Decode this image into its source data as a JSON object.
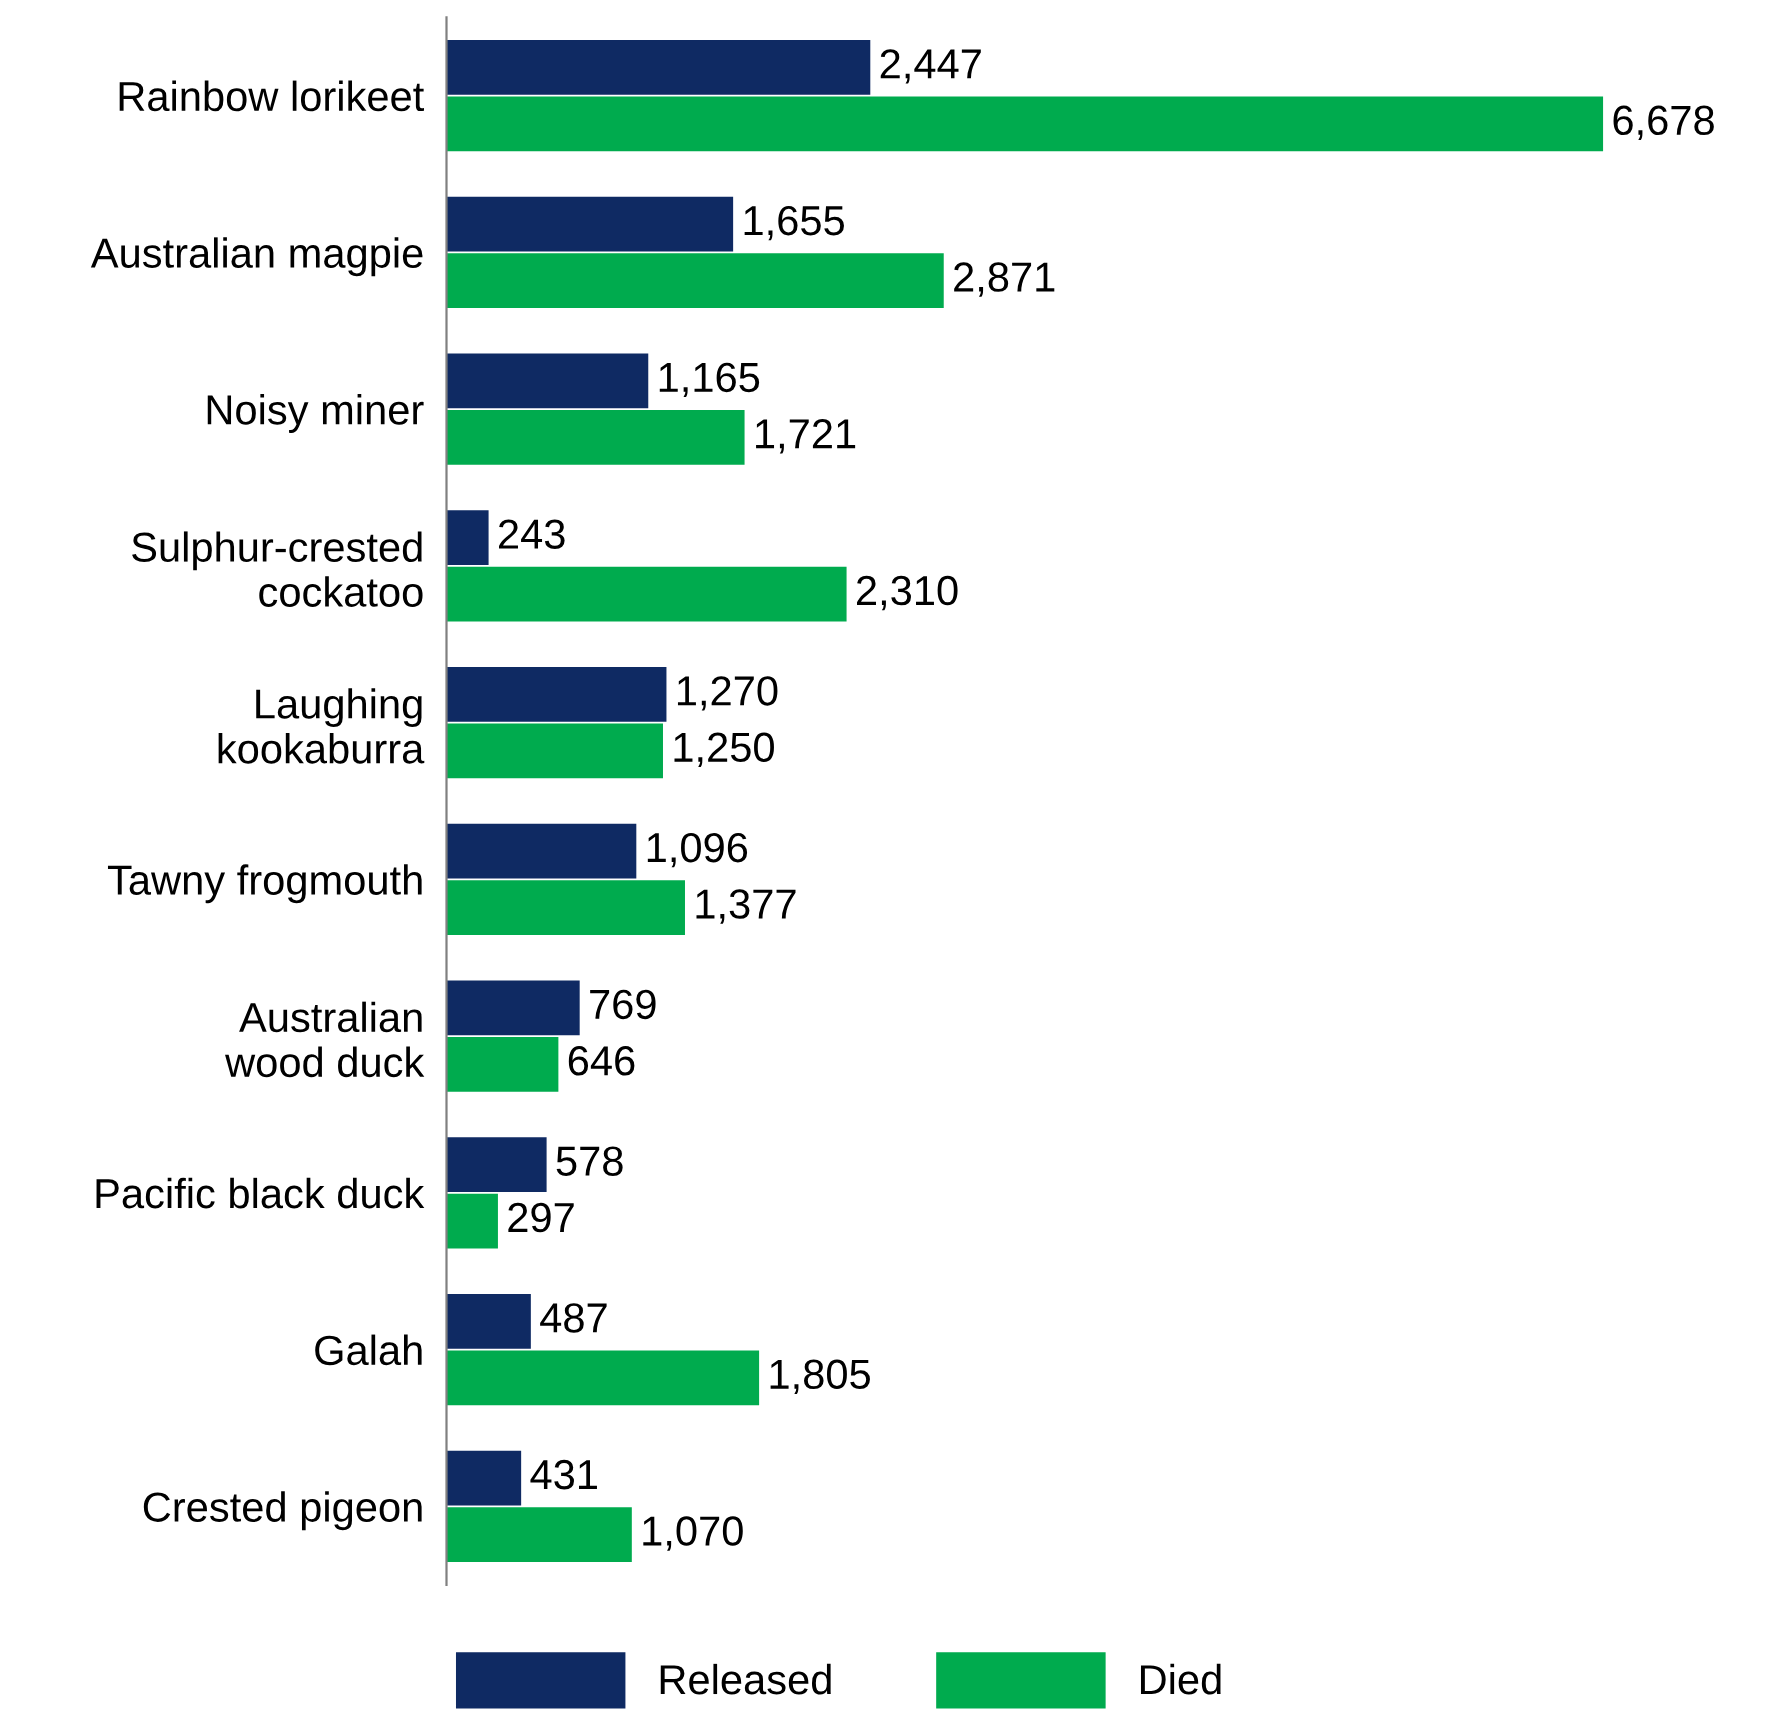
{
  "chart_data": {
    "type": "bar",
    "orientation": "horizontal",
    "categories": [
      "Rainbow lorikeet",
      "Australian magpie",
      "Noisy miner",
      "Sulphur-crested\ncockatoo",
      "Laughing\nkookaburra",
      "Tawny frogmouth",
      "Australian\nwood duck",
      "Pacific black duck",
      "Galah",
      "Crested pigeon"
    ],
    "series": [
      {
        "name": "Released",
        "color": "#0f2a63",
        "values": [
          2447,
          1655,
          1165,
          243,
          1270,
          1096,
          769,
          578,
          487,
          431
        ],
        "value_labels": [
          "2,447",
          "1,655",
          "1,165",
          "243",
          "1,270",
          "1,096",
          "769",
          "578",
          "487",
          "431"
        ]
      },
      {
        "name": "Died",
        "color": "#00ab4e",
        "values": [
          6678,
          2871,
          1721,
          2310,
          1250,
          1377,
          646,
          297,
          1805,
          1070
        ],
        "value_labels": [
          "6,678",
          "2,871",
          "1,721",
          "2,310",
          "1,250",
          "1,377",
          "646",
          "297",
          "1,805",
          "1,070"
        ]
      }
    ],
    "legend": "bottom",
    "grid": false,
    "tick_labels": "y"
  }
}
